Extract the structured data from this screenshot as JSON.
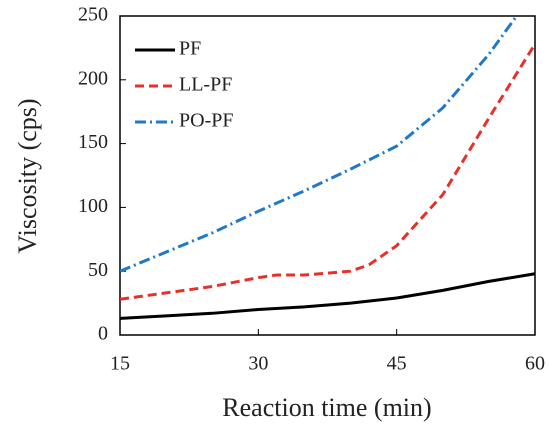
{
  "chart_data": {
    "type": "line",
    "x_label": "Reaction time (min)",
    "y_label": "Viscosity (cps)",
    "xlim": [
      15,
      60
    ],
    "xticks": [
      15,
      30,
      45,
      60
    ],
    "ylim": [
      0,
      250
    ],
    "yticks": [
      0,
      50,
      100,
      150,
      200,
      250
    ],
    "legend": "upper left",
    "series": [
      {
        "name": "PF",
        "color": "#000000",
        "dash": "solid",
        "x": [
          15,
          20,
          25,
          30,
          35,
          40,
          45,
          50,
          55,
          60
        ],
        "values": [
          13,
          15,
          17,
          20,
          22,
          25,
          29,
          35,
          42,
          48
        ]
      },
      {
        "name": "LL-PF",
        "color": "#e8302a",
        "dash": "dashed",
        "x": [
          15,
          20,
          25,
          30,
          32,
          35,
          40,
          42,
          45,
          50,
          55,
          60
        ],
        "values": [
          28,
          33,
          38,
          45,
          47,
          47,
          50,
          55,
          70,
          110,
          170,
          228
        ]
      },
      {
        "name": "PO-PF",
        "color": "#1f78c8",
        "dash": "dashdot",
        "x": [
          15,
          20,
          25,
          30,
          35,
          40,
          45,
          50,
          55,
          58
        ],
        "values": [
          50,
          65,
          80,
          97,
          113,
          130,
          148,
          178,
          220,
          250
        ]
      }
    ]
  }
}
